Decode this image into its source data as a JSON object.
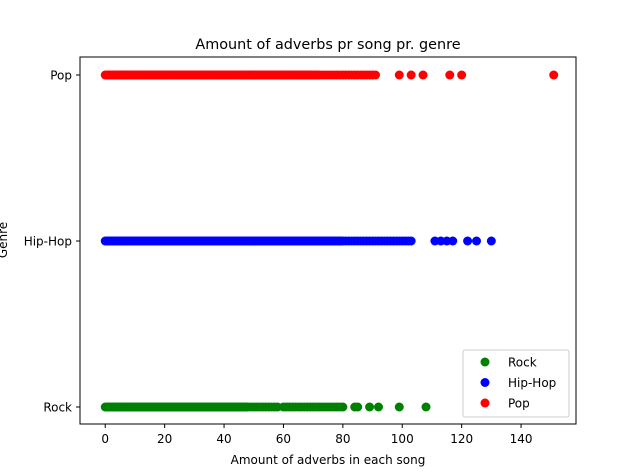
{
  "chart_data": {
    "type": "scatter",
    "title": "Amount of adverbs pr song pr. genre",
    "xlabel": "Amount of adverbs in each song",
    "ylabel": "Genre",
    "xlim": [
      -8.5,
      158.5
    ],
    "xticks": [
      0,
      20,
      40,
      60,
      80,
      100,
      120,
      140
    ],
    "categories": [
      "Rock",
      "Hip-Hop",
      "Pop"
    ],
    "legend_position": "lower right",
    "grid": false,
    "series": [
      {
        "name": "Rock",
        "color": "#008000",
        "dense_range": [
          0,
          48
        ],
        "values": [
          49,
          50,
          51,
          52,
          53,
          54,
          55,
          56,
          57,
          58,
          60,
          61,
          62,
          63,
          64,
          65,
          66,
          67,
          68,
          69,
          70,
          71,
          72,
          73,
          74,
          75,
          76,
          77,
          78,
          79,
          80,
          84,
          85,
          89,
          92,
          99,
          108
        ]
      },
      {
        "name": "Hip-Hop",
        "color": "#0000ff",
        "dense_range": [
          0,
          80
        ],
        "values": [
          81,
          82,
          83,
          84,
          85,
          86,
          87,
          88,
          89,
          90,
          91,
          92,
          93,
          94,
          95,
          96,
          97,
          98,
          99,
          100,
          101,
          102,
          103,
          111,
          113,
          115,
          117,
          122,
          125,
          130
        ]
      },
      {
        "name": "Pop",
        "color": "#ff0000",
        "dense_range": [
          0,
          72
        ],
        "values": [
          73,
          74,
          75,
          76,
          77,
          78,
          79,
          80,
          81,
          82,
          83,
          84,
          85,
          86,
          87,
          88,
          89,
          90,
          91,
          99,
          103,
          107,
          116,
          120,
          151
        ]
      }
    ]
  }
}
